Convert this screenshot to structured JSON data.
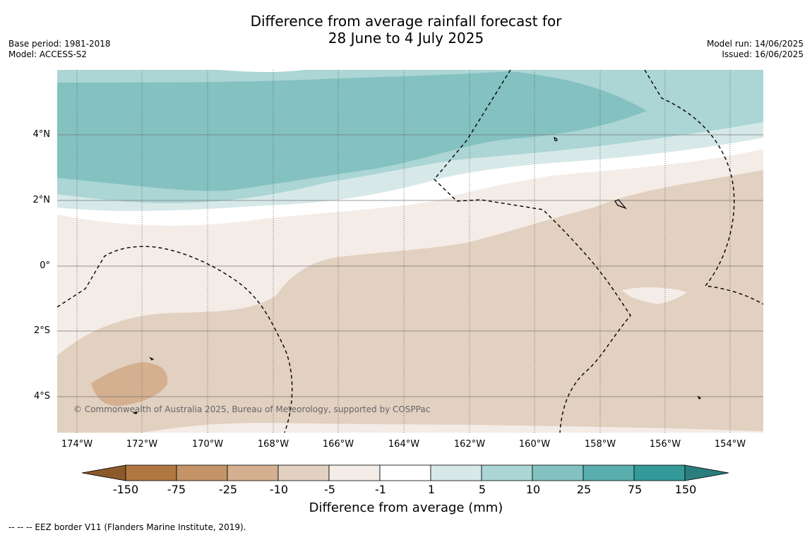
{
  "header": {
    "title_line1": "Difference from average rainfall forecast for",
    "title_line2": "28 June to 4 July 2025",
    "base_period": "Base period: 1981-2018",
    "model": "Model: ACCESS-S2",
    "model_run": "Model run: 14/06/2025",
    "issued": "Issued: 16/06/2025"
  },
  "map": {
    "lat_labels": [
      "4°N",
      "2°N",
      "0°",
      "2°S",
      "4°S"
    ],
    "lon_labels": [
      "174°W",
      "172°W",
      "170°W",
      "168°W",
      "166°W",
      "164°W",
      "162°W",
      "160°W",
      "158°W",
      "156°W",
      "154°W"
    ],
    "copyright": "© Commonwealth of Australia 2025, Bureau of Meteorology, supported by COSPPac"
  },
  "legend": {
    "ticks": [
      "-150",
      "-75",
      "-25",
      "-10",
      "-5",
      "-1",
      "1",
      "5",
      "10",
      "25",
      "75",
      "150"
    ],
    "colors": [
      "#8c5a2a",
      "#b07840",
      "#c49468",
      "#d4b090",
      "#e2d0c0",
      "#f4ece6",
      "#ffffff",
      "#d6e9e8",
      "#acd5d5",
      "#84c1c1",
      "#5aaeae",
      "#339a99",
      "#2a7e7d"
    ],
    "label": "Difference from average (mm)"
  },
  "footer": "--  --  -- EEZ border V11 (Flanders Marine Institute, 2019)."
}
